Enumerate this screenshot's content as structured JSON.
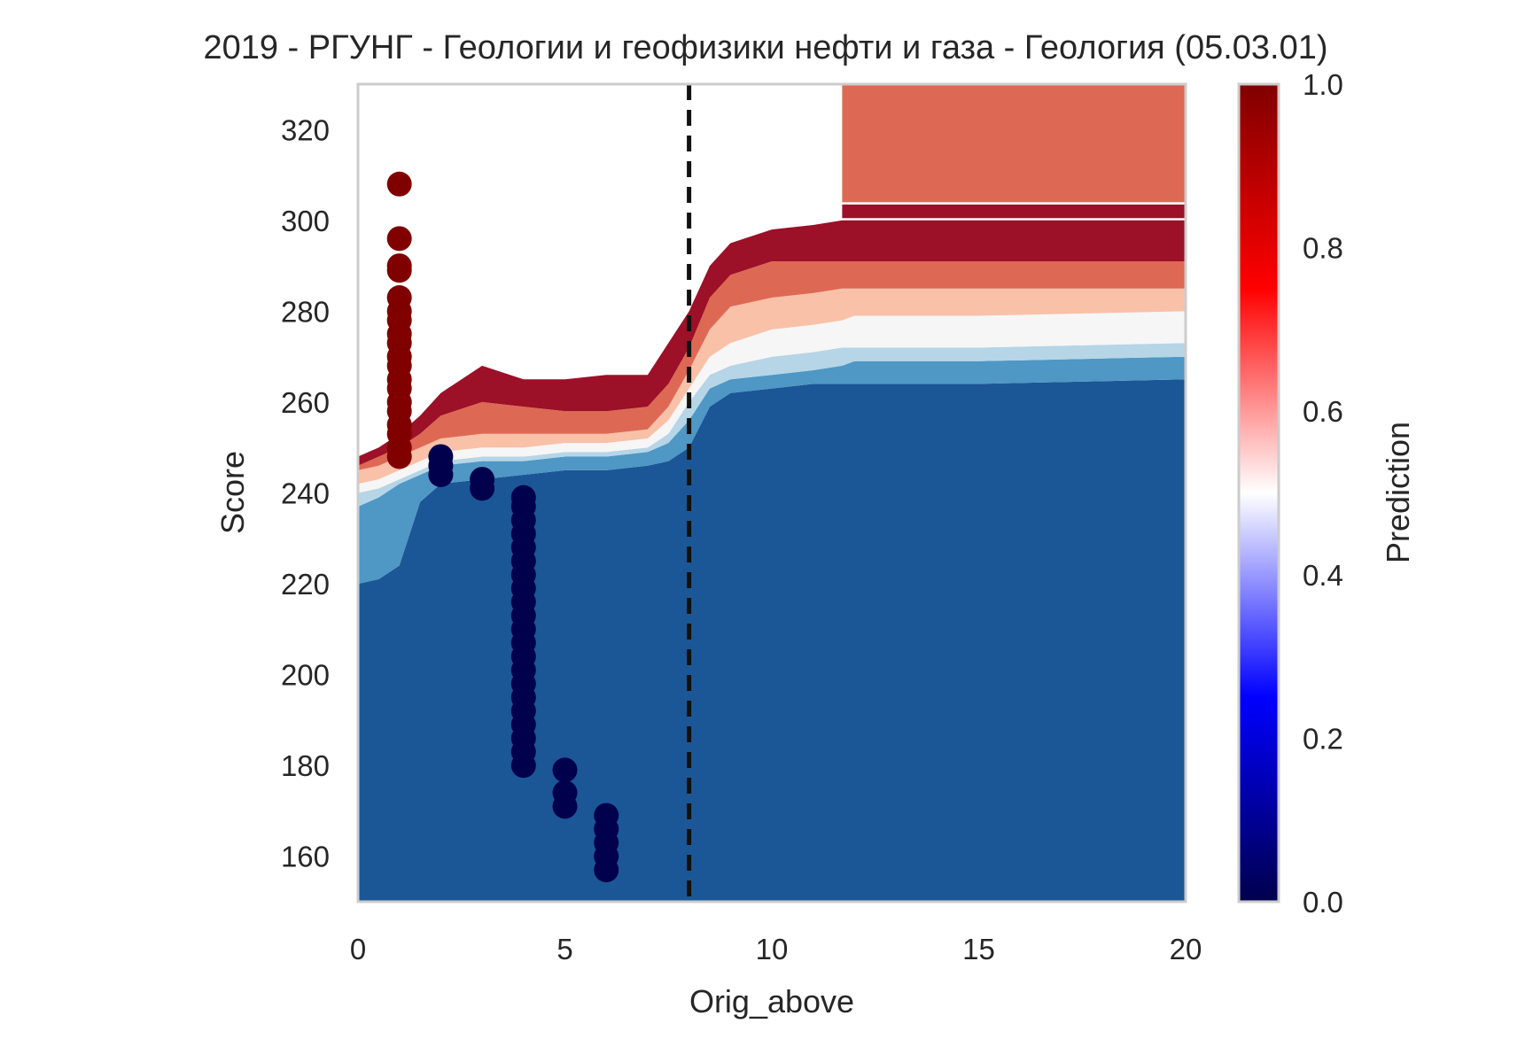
{
  "chart_data": {
    "type": "heatmap",
    "title": "2019 - РГУНГ - Геологии и геофизики нефти и газа - Геология (05.03.01)",
    "xlabel": "Orig_above",
    "ylabel": "Score",
    "xlim": [
      0,
      20
    ],
    "ylim": [
      150,
      330
    ],
    "x_ticks": [
      0,
      5,
      10,
      15,
      20
    ],
    "y_ticks": [
      160,
      180,
      200,
      220,
      240,
      260,
      280,
      300,
      320
    ],
    "grid": false,
    "colormap": "seismic",
    "colorbar": {
      "label": "Prediction",
      "range": [
        0.0,
        1.0
      ],
      "ticks": [
        "0.0",
        "0.2",
        "0.4",
        "0.6",
        "0.8",
        "1.0"
      ],
      "stops": [
        {
          "v": 0.0,
          "color": "#00004d"
        },
        {
          "v": 0.25,
          "color": "#0000ff"
        },
        {
          "v": 0.5,
          "color": "#ffffff"
        },
        {
          "v": 0.75,
          "color": "#ff0000"
        },
        {
          "v": 1.0,
          "color": "#800000"
        }
      ]
    },
    "contour_levels": [
      {
        "level": "0.0-0.1",
        "color": "#1b5796"
      },
      {
        "level": "0.1-0.2",
        "color": "#4f97c4"
      },
      {
        "level": "0.2-0.4",
        "color": "#b6d5e7"
      },
      {
        "level": "0.4-0.6",
        "color": "#f6f6f6"
      },
      {
        "level": "0.6-0.8",
        "color": "#f8c1a8"
      },
      {
        "level": "0.8-0.9",
        "color": "#dd6955"
      },
      {
        "level": "0.9-1.0",
        "color": "#9c1028"
      }
    ],
    "boundaries": {
      "x": [
        0,
        0.5,
        1,
        1.5,
        2,
        3,
        4,
        5,
        6,
        7,
        7.5,
        8,
        8.5,
        9,
        10,
        11,
        11.7,
        12,
        15,
        20
      ],
      "b1": [
        220,
        221,
        224,
        238,
        242,
        243,
        244,
        245,
        245,
        246,
        247,
        250,
        259,
        262,
        263,
        264,
        264,
        264,
        264,
        265
      ],
      "b2": [
        237,
        239,
        242,
        244,
        246,
        247,
        247,
        248,
        248,
        249,
        251,
        256,
        263,
        265,
        266,
        267,
        268,
        269,
        269,
        270
      ],
      "b3": [
        240,
        241,
        243,
        245,
        247,
        248,
        248,
        249,
        249,
        250,
        253,
        260,
        266,
        268,
        270,
        271,
        272,
        272,
        272,
        273
      ],
      "b4": [
        242,
        243,
        245,
        247,
        249,
        250,
        250,
        251,
        251,
        252,
        256,
        263,
        270,
        273,
        276,
        277,
        278,
        279,
        279,
        280
      ],
      "b5": [
        245,
        246,
        248,
        250,
        252,
        253,
        253,
        253,
        253,
        254,
        259,
        267,
        276,
        281,
        283,
        284,
        285,
        285,
        285,
        285
      ],
      "b6": [
        246,
        248,
        250,
        253,
        257,
        260,
        259,
        258,
        258,
        259,
        264,
        272,
        283,
        288,
        291,
        291,
        291,
        291,
        291,
        291
      ],
      "b7": [
        248,
        250,
        253,
        257,
        262,
        268,
        265,
        265,
        266,
        266,
        273,
        280,
        290,
        295,
        298,
        299,
        300,
        300,
        300,
        300
      ]
    },
    "top_right_block": {
      "x_from": 11.7,
      "y_from": 304,
      "level": "0.8-0.9"
    },
    "thin_band": {
      "x_from": 11.7,
      "y_from": 300.5,
      "y_to": 303.5,
      "level": "0.9-1.0"
    },
    "vertical_line": {
      "x": 8,
      "style": "dashed",
      "color": "#111111"
    },
    "series": [
      {
        "name": "",
        "color": "#800000",
        "x": 1,
        "y": [
          248,
          250,
          253,
          255,
          258,
          260,
          263,
          265,
          268,
          270,
          273,
          275,
          278,
          280,
          283,
          289,
          290,
          296,
          308
        ]
      },
      {
        "name": "",
        "color": "#00004d",
        "x": 2,
        "y": [
          244,
          246,
          248
        ]
      },
      {
        "name": "",
        "color": "#00004d",
        "x": 3,
        "y": [
          241,
          243
        ]
      },
      {
        "name": "",
        "color": "#00004d",
        "x": 4,
        "y": [
          180,
          183,
          186,
          189,
          192,
          195,
          198,
          201,
          204,
          207,
          210,
          213,
          216,
          219,
          222,
          225,
          228,
          231,
          234,
          237,
          239
        ]
      },
      {
        "name": "",
        "color": "#00004d",
        "x": 5,
        "y": [
          171,
          174,
          179
        ]
      },
      {
        "name": "",
        "color": "#00004d",
        "x": 6,
        "y": [
          157,
          160,
          163,
          166,
          169
        ]
      }
    ]
  }
}
